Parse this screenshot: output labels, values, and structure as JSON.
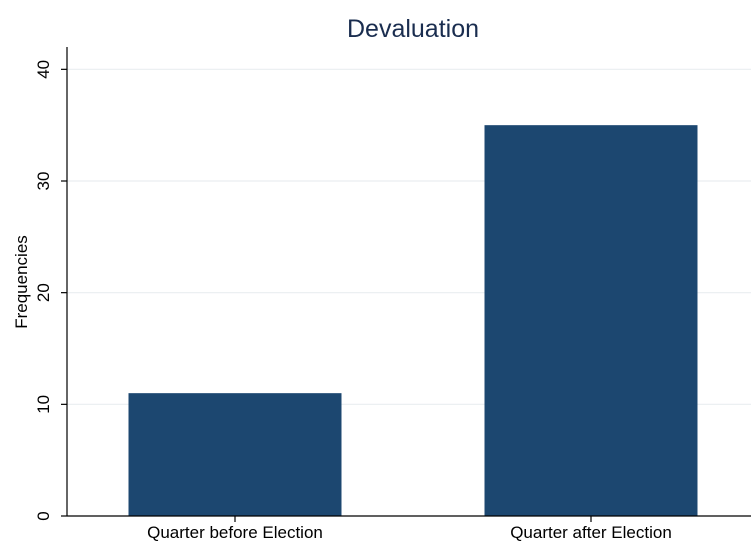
{
  "chart_data": {
    "type": "bar",
    "title": "Devaluation",
    "xlabel": "",
    "ylabel": "Frequencies",
    "categories": [
      "Quarter before Election",
      "Quarter after Election"
    ],
    "values": [
      11,
      35
    ],
    "ylim": [
      0,
      42
    ],
    "yticks": [
      0,
      10,
      20,
      30,
      40
    ],
    "grid": true,
    "legend": "none",
    "bar_color": "#1c4770",
    "title_color": "#1a2d4f"
  }
}
